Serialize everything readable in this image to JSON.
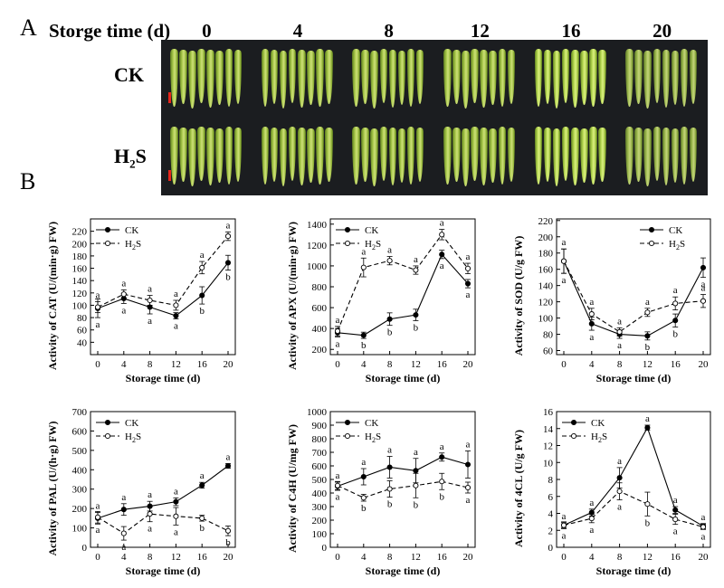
{
  "panel_a": {
    "letter": "A",
    "title": "Storge time (d)",
    "days": [
      "0",
      "4",
      "8",
      "12",
      "16",
      "20"
    ],
    "rows": [
      {
        "name": "CK",
        "sub": ""
      },
      {
        "name": "H",
        "sub": "2",
        "tail": "S"
      }
    ],
    "colors": {
      "background": "#1b1d20",
      "okra": "#a9c94a",
      "scale_bar": "#e8261b"
    }
  },
  "panel_b": {
    "letter": "B"
  },
  "chart_data": [
    {
      "type": "line",
      "xlabel": "Storage time (d)",
      "ylabel": "Activity of CAT (U/(min·g) FW)",
      "x": [
        0,
        4,
        8,
        12,
        16,
        20
      ],
      "ylim": [
        20,
        240
      ],
      "yticks": [
        40,
        60,
        80,
        100,
        120,
        140,
        160,
        180,
        200,
        220
      ],
      "legend_position": "top-left",
      "series": [
        {
          "name": "CK",
          "style": "solid",
          "values": [
            95,
            111,
            97,
            83,
            116,
            169
          ],
          "errors": [
            15,
            8,
            11,
            5,
            14,
            12
          ],
          "letters": [
            "a",
            "a",
            "a",
            "a",
            "b",
            "b"
          ],
          "letter_side": "below"
        },
        {
          "name": "H2S",
          "style": "dashed",
          "values": [
            97,
            118,
            108,
            100,
            161,
            212
          ],
          "errors": [
            9,
            7,
            8,
            8,
            10,
            7
          ],
          "letters": [
            "a",
            "a",
            "a",
            "a",
            "a",
            "a"
          ],
          "letter_side": "above"
        }
      ]
    },
    {
      "type": "line",
      "xlabel": "Storage time (d)",
      "ylabel": "Activity of APX (U/(min·g) FW)",
      "x": [
        0,
        4,
        8,
        12,
        16,
        20
      ],
      "ylim": [
        150,
        1450
      ],
      "yticks": [
        200,
        400,
        600,
        800,
        1000,
        1200,
        1400
      ],
      "legend_position": "top-left",
      "series": [
        {
          "name": "CK",
          "style": "solid",
          "values": [
            360,
            335,
            490,
            530,
            1110,
            830
          ],
          "errors": [
            40,
            30,
            60,
            55,
            40,
            40
          ],
          "letters": [
            "a",
            "b",
            "b",
            "b",
            "a",
            "a"
          ],
          "letter_side": "below"
        },
        {
          "name": "H2S",
          "style": "dashed",
          "values": [
            375,
            985,
            1050,
            960,
            1300,
            975
          ],
          "errors": [
            45,
            90,
            40,
            40,
            50,
            50
          ],
          "letters": [
            "a",
            "a",
            "a",
            "a",
            "a",
            "a"
          ],
          "letter_side": "above"
        }
      ]
    },
    {
      "type": "line",
      "xlabel": "Storage time (d)",
      "ylabel": "Activity of SOD (U/g FW)",
      "x": [
        0,
        4,
        8,
        12,
        16,
        20
      ],
      "ylim": [
        55,
        222
      ],
      "yticks": [
        60,
        80,
        100,
        120,
        140,
        160,
        180,
        200,
        220
      ],
      "legend_position": "top-right",
      "series": [
        {
          "name": "CK",
          "style": "solid",
          "values": [
            170,
            93,
            80,
            78,
            97,
            162
          ],
          "errors": [
            15,
            8,
            5,
            5,
            8,
            12
          ],
          "letters": [
            "a",
            "a",
            "a",
            "b",
            "b",
            "a"
          ],
          "letter_side": "below"
        },
        {
          "name": "H2S",
          "style": "dashed",
          "values": [
            170,
            105,
            83,
            107,
            118,
            121
          ],
          "errors": [
            15,
            7,
            5,
            5,
            8,
            8
          ],
          "letters": [
            "a",
            "a",
            "a",
            "a",
            "a",
            "a"
          ],
          "letter_side": "above"
        }
      ]
    },
    {
      "type": "line",
      "xlabel": "Storage time (d)",
      "ylabel": "Activity of PAL (U/(h·g) FW)",
      "x": [
        0,
        4,
        8,
        12,
        16,
        20
      ],
      "ylim": [
        0,
        700
      ],
      "yticks": [
        0,
        100,
        200,
        300,
        400,
        500,
        600,
        700
      ],
      "legend_position": "top-left",
      "series": [
        {
          "name": "CK",
          "style": "solid",
          "values": [
            150,
            195,
            212,
            235,
            320,
            420
          ],
          "errors": [
            30,
            30,
            25,
            20,
            15,
            12
          ],
          "letters": [
            "a",
            "a",
            "a",
            "a",
            "a",
            "a"
          ],
          "letter_side": "above"
        },
        {
          "name": "H2S",
          "style": "dashed",
          "values": [
            155,
            72,
            172,
            160,
            150,
            85
          ],
          "errors": [
            30,
            35,
            40,
            45,
            15,
            25
          ],
          "letters": [
            "a",
            "a",
            "a",
            "a",
            "b",
            "b"
          ],
          "letter_side": "below"
        }
      ]
    },
    {
      "type": "line",
      "xlabel": "Storage time (d)",
      "ylabel": "Activity of C4H (U/mg FW)",
      "x": [
        0,
        4,
        8,
        12,
        16,
        20
      ],
      "ylim": [
        0,
        1000
      ],
      "yticks": [
        0,
        100,
        200,
        300,
        400,
        500,
        600,
        700,
        800,
        900,
        1000
      ],
      "legend_position": "top-left",
      "series": [
        {
          "name": "CK",
          "style": "solid",
          "values": [
            450,
            520,
            590,
            565,
            665,
            610
          ],
          "errors": [
            30,
            60,
            80,
            90,
            30,
            100
          ],
          "letters": [
            "a",
            "a",
            "a",
            "a",
            "a",
            "a"
          ],
          "letter_side": "above"
        },
        {
          "name": "H2S",
          "style": "dashed",
          "values": [
            455,
            365,
            430,
            455,
            485,
            440
          ],
          "errors": [
            30,
            25,
            60,
            90,
            60,
            40
          ],
          "letters": [
            "a",
            "b",
            "b",
            "b",
            "b",
            "a"
          ],
          "letter_side": "below"
        }
      ]
    },
    {
      "type": "line",
      "xlabel": "Storage time (d)",
      "ylabel": "Activity of 4CL (U/g FW)",
      "x": [
        0,
        4,
        8,
        12,
        16,
        20
      ],
      "ylim": [
        0,
        16
      ],
      "yticks": [
        0,
        2,
        4,
        6,
        8,
        10,
        12,
        14,
        16
      ],
      "legend_position": "top-left",
      "series": [
        {
          "name": "CK",
          "style": "solid",
          "values": [
            2.6,
            4.1,
            8.2,
            14.1,
            4.4,
            2.5
          ],
          "errors": [
            0.3,
            0.4,
            1.2,
            0.3,
            0.4,
            0.3
          ],
          "letters": [
            "a",
            "a",
            "a",
            "a",
            "a",
            "a"
          ],
          "letter_side": "above"
        },
        {
          "name": "H2S",
          "style": "dashed",
          "values": [
            2.6,
            3.4,
            6.6,
            5.1,
            3.3,
            2.4
          ],
          "errors": [
            0.4,
            0.5,
            1.0,
            1.4,
            0.6,
            0.3
          ],
          "letters": [
            "a",
            "a",
            "a",
            "b",
            "a",
            "a"
          ],
          "letter_side": "below"
        }
      ]
    }
  ]
}
